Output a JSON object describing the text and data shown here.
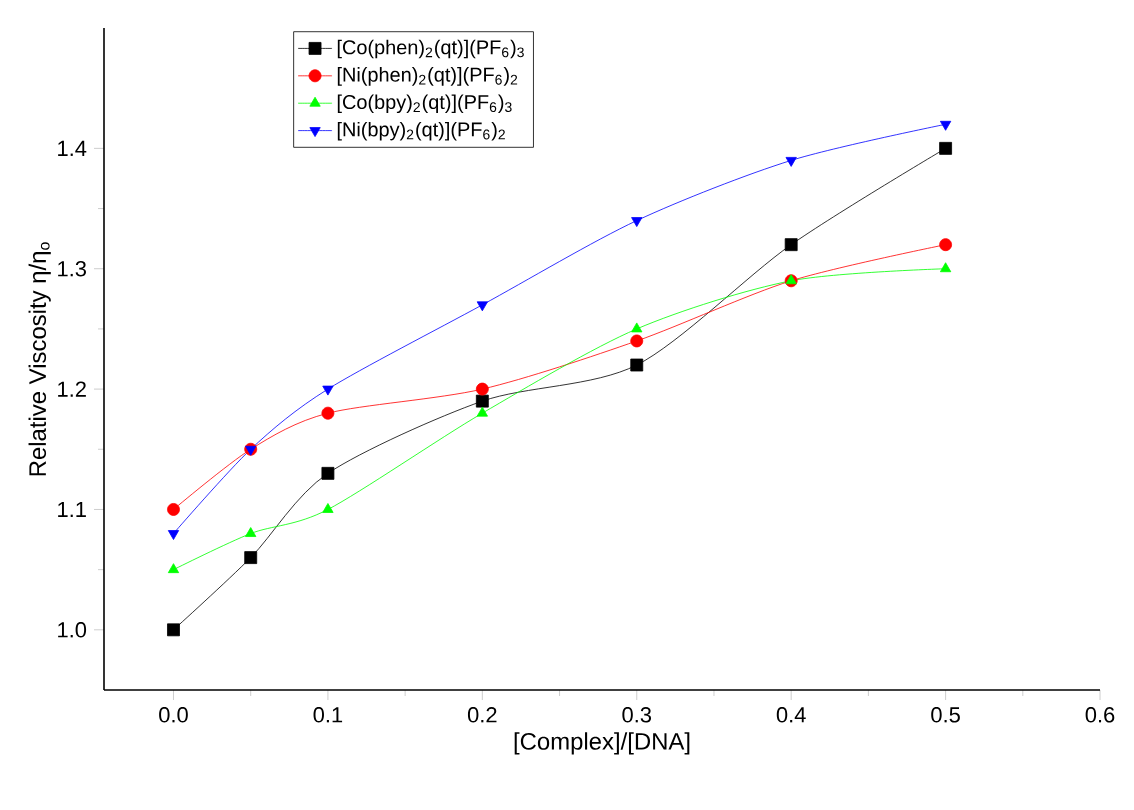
{
  "chart_data": {
    "type": "line",
    "xlabel": "[Complex]/[DNA]",
    "ylabel": "Relative Viscosity η/η$_{o}$",
    "xlim": [
      -0.045,
      0.6
    ],
    "ylim": [
      0.95,
      1.5
    ],
    "xticks": [
      {
        "value": 0,
        "label": "0.0"
      },
      {
        "value": 0.1,
        "label": "0.1"
      },
      {
        "value": 0.2,
        "label": "0.2"
      },
      {
        "value": 0.3,
        "label": "0.3"
      },
      {
        "value": 0.4,
        "label": "0.4"
      },
      {
        "value": 0.5,
        "label": "0.5"
      },
      {
        "value": 0.6,
        "label": "0.6"
      }
    ],
    "yticks": [
      {
        "value": 1.0,
        "label": "1.0"
      },
      {
        "value": 1.1,
        "label": "1.1"
      },
      {
        "value": 1.2,
        "label": "1.2"
      },
      {
        "value": 1.3,
        "label": "1.3"
      },
      {
        "value": 1.4,
        "label": "1.4"
      }
    ],
    "x": [
      0,
      0.05,
      0.1,
      0.2,
      0.3,
      0.4,
      0.5
    ],
    "legend": "top left",
    "grid": false,
    "series": [
      {
        "name": "[Co(phen)$_{2}$(qt)](PF$_{6}$)$_{3}$",
        "color": "#000000",
        "marker": "square",
        "values": [
          1.0,
          1.06,
          1.13,
          1.19,
          1.22,
          1.32,
          1.4
        ]
      },
      {
        "name": "[Ni(phen)$_{2}$(qt)](PF$_{6}$)$_{2}$",
        "color": "#ff0000",
        "marker": "circle",
        "values": [
          1.1,
          1.15,
          1.18,
          1.2,
          1.24,
          1.29,
          1.32
        ]
      },
      {
        "name": "[Co(bpy)$_{2}$(qt)](PF$_{6}$)$_{3}$",
        "color": "#00ff00",
        "marker": "triangle",
        "values": [
          1.05,
          1.08,
          1.1,
          1.18,
          1.25,
          1.29,
          1.3
        ]
      },
      {
        "name": "[Ni(bpy)$_{2}$(qt)](PF$_{6}$)$_{2}$",
        "color": "#0000ff",
        "marker": "triangle-down",
        "values": [
          1.08,
          1.15,
          1.2,
          1.27,
          1.34,
          1.39,
          1.42
        ]
      }
    ]
  }
}
